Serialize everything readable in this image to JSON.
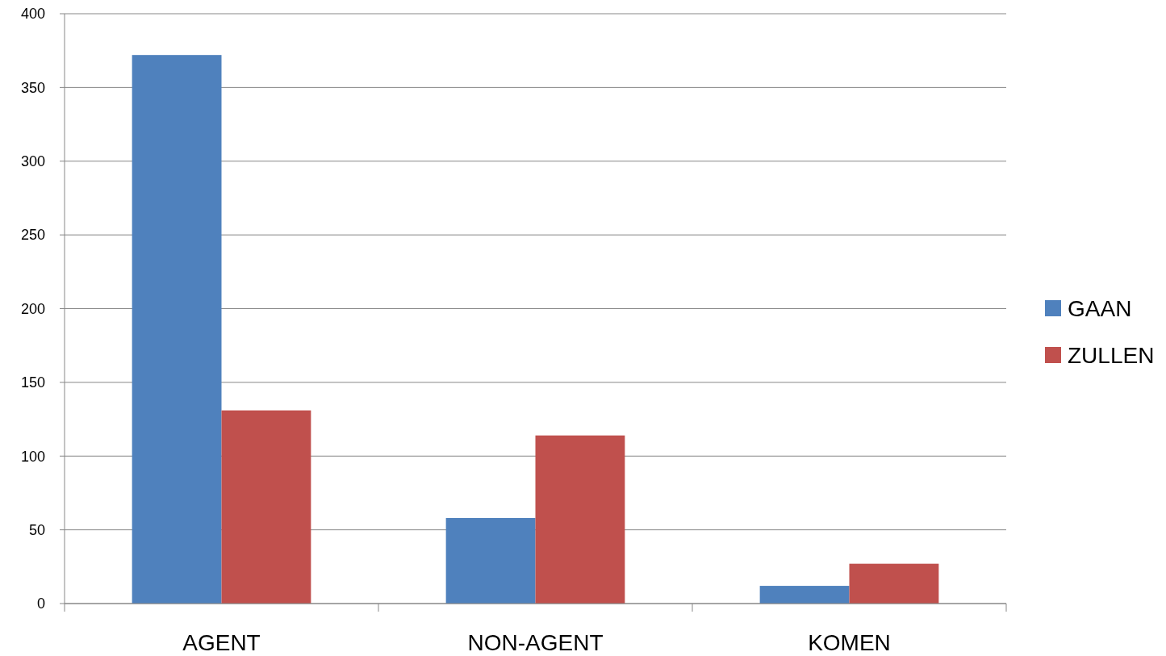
{
  "chart_data": {
    "type": "bar",
    "categories": [
      "AGENT",
      "NON-AGENT",
      "KOMEN"
    ],
    "series": [
      {
        "name": "GAAN",
        "color": "#4f81bd",
        "values": [
          372,
          58,
          12
        ]
      },
      {
        "name": "ZULLEN",
        "color": "#c0504d",
        "values": [
          131,
          114,
          27
        ]
      }
    ],
    "ylim": [
      0,
      400
    ],
    "yticks": [
      0,
      50,
      100,
      150,
      200,
      250,
      300,
      350,
      400
    ],
    "grid": "y",
    "legend": "right"
  }
}
